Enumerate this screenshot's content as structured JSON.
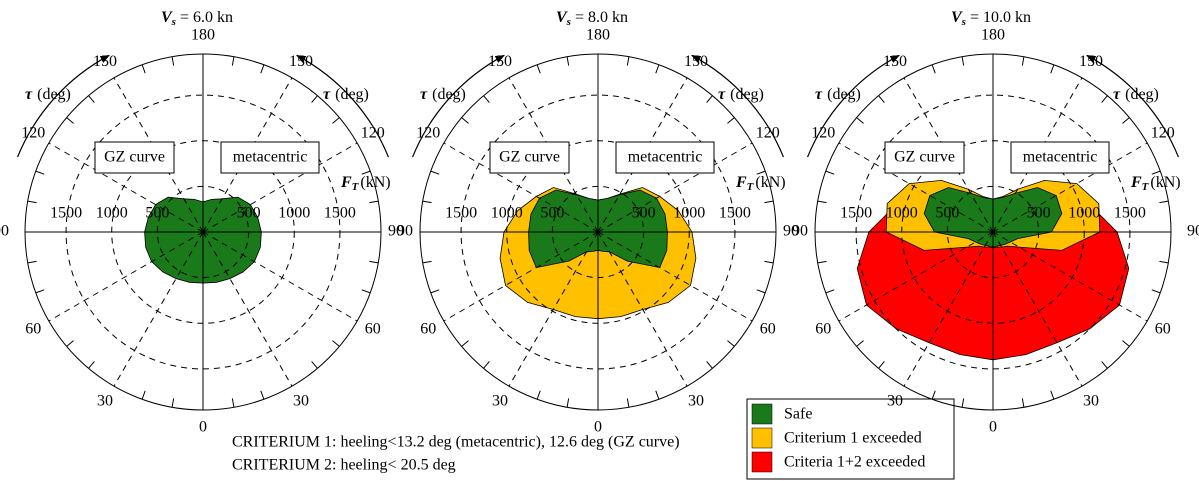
{
  "chart_data": [
    {
      "type": "polar",
      "title_var": "V",
      "title_sub": "s",
      "title_rest": "= 6.0 kn",
      "left_label": "GZ curve",
      "right_label": "metacentric",
      "theta_label": "τ",
      "theta_unit": "(deg)",
      "r_label_var": "F",
      "r_label_sub": "T",
      "r_label_unit": "(kN)",
      "rlim": [
        0,
        1950
      ],
      "rticks": [
        500,
        1000,
        1500
      ],
      "theta_ticks": [
        0,
        30,
        60,
        90,
        120,
        150,
        180
      ],
      "theta_minor_ticks": [
        10,
        20,
        40,
        50,
        70,
        80,
        100,
        110,
        130,
        140,
        160,
        170
      ],
      "series": [
        {
          "color": "#1a7a1a",
          "theta": [
            0,
            15,
            30,
            45,
            60,
            75,
            90,
            105,
            120,
            135,
            150,
            165,
            180
          ],
          "r": [
            560,
            570,
            590,
            620,
            650,
            650,
            640,
            620,
            600,
            540,
            420,
            370,
            330
          ]
        }
      ]
    },
    {
      "type": "polar",
      "title_var": "V",
      "title_sub": "s",
      "title_rest": "= 8.0 kn",
      "left_label": "GZ curve",
      "right_label": "metacentric",
      "theta_label": "τ",
      "theta_unit": "(deg)",
      "r_label_var": "F",
      "r_label_sub": "T",
      "r_label_unit": "(kN)",
      "rlim": [
        0,
        1950
      ],
      "rticks": [
        500,
        1000,
        1500
      ],
      "theta_ticks": [
        0,
        30,
        60,
        90,
        120,
        150,
        180
      ],
      "theta_minor_ticks": [
        10,
        20,
        40,
        50,
        70,
        80,
        100,
        110,
        130,
        140,
        160,
        170
      ],
      "series": [
        {
          "color": "#ffc000",
          "theta": [
            0,
            15,
            30,
            45,
            60,
            75,
            90,
            105,
            120,
            135,
            150,
            165,
            180
          ],
          "r": [
            950,
            960,
            980,
            1090,
            1170,
            1110,
            1030,
            910,
            780,
            690,
            480,
            380,
            350
          ]
        },
        {
          "color": "#1a7a1a",
          "theta": [
            0,
            15,
            30,
            45,
            60,
            75,
            90,
            105,
            120,
            135,
            150,
            165,
            180
          ],
          "r": [
            200,
            220,
            250,
            450,
            780,
            780,
            760,
            760,
            740,
            650,
            470,
            380,
            350
          ]
        }
      ]
    },
    {
      "type": "polar",
      "title_var": "V",
      "title_sub": "s",
      "title_rest": "= 10.0 kn",
      "left_label": "GZ curve",
      "right_label": "metacentric",
      "theta_label": "τ",
      "theta_unit": "(deg)",
      "r_label_var": "F",
      "r_label_sub": "T",
      "r_label_unit": "(kN)",
      "rlim": [
        0,
        1950
      ],
      "rticks": [
        500,
        1000,
        1500
      ],
      "theta_ticks": [
        0,
        30,
        60,
        90,
        120,
        150,
        180
      ],
      "theta_minor_ticks": [
        10,
        20,
        40,
        50,
        70,
        80,
        100,
        110,
        130,
        140,
        160,
        170
      ],
      "series": [
        {
          "color": "#ff0000",
          "theta": [
            0,
            15,
            30,
            45,
            60,
            75,
            90,
            105,
            120,
            135,
            150,
            165,
            180
          ],
          "r": [
            1400,
            1390,
            1400,
            1500,
            1600,
            1540,
            1360,
            1110,
            780,
            670,
            480,
            380,
            350
          ]
        },
        {
          "color": "#ffc000",
          "theta": [
            0,
            15,
            30,
            45,
            60,
            75,
            90,
            105,
            120,
            135,
            150,
            165,
            180
          ],
          "r": [
            170,
            170,
            190,
            220,
            330,
            780,
            1170,
            1200,
            1060,
            800,
            540,
            400,
            360
          ]
        },
        {
          "color": "#1a7a1a",
          "theta": [
            0,
            15,
            30,
            45,
            60,
            75,
            90,
            105,
            120,
            135,
            150,
            165,
            180
          ],
          "r": [
            160,
            160,
            170,
            190,
            220,
            280,
            640,
            780,
            800,
            690,
            490,
            390,
            360
          ]
        }
      ]
    }
  ],
  "legend": [
    {
      "name": "Safe",
      "color": "#1a7a1a"
    },
    {
      "name": "Criterium 1 exceeded",
      "color": "#ffc000"
    },
    {
      "name": "Criteria 1+2 exceeded",
      "color": "#ff0000"
    }
  ],
  "footnotes": [
    "CRITERIUM 1: heeling<13.2 deg (metacentric), 12.6 deg (GZ curve)",
    "CRITERIUM 2: heeling< 20.5 deg"
  ]
}
